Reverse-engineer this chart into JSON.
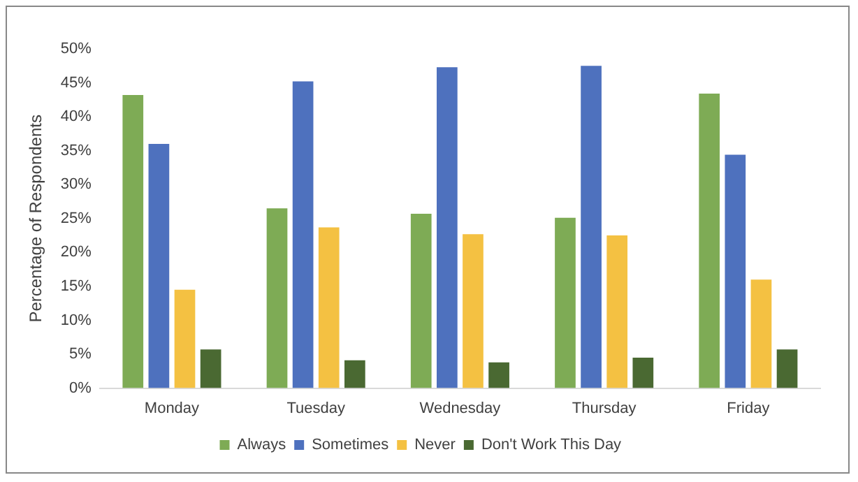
{
  "chart_data": {
    "type": "bar",
    "ylabel": "Percentage of Respondents",
    "categories": [
      "Monday",
      "Tuesday",
      "Wednesday",
      "Thursday",
      "Friday"
    ],
    "series": [
      {
        "name": "Always",
        "color": "#7eab55",
        "values": [
          43.2,
          26.5,
          25.7,
          25.1,
          43.4
        ]
      },
      {
        "name": "Sometimes",
        "color": "#4e71be",
        "values": [
          36.0,
          45.2,
          47.3,
          47.5,
          34.4
        ]
      },
      {
        "name": "Never",
        "color": "#f4c142",
        "values": [
          14.5,
          23.7,
          22.7,
          22.5,
          16.0
        ]
      },
      {
        "name": "Don't Work This Day",
        "color": "#4a6932",
        "values": [
          5.7,
          4.1,
          3.8,
          4.5,
          5.7
        ]
      }
    ],
    "ylim": [
      0,
      50
    ],
    "yticks": [
      {
        "value": 0,
        "label": "0%"
      },
      {
        "value": 5,
        "label": "5%"
      },
      {
        "value": 10,
        "label": "10%"
      },
      {
        "value": 15,
        "label": "15%"
      },
      {
        "value": 20,
        "label": "20%"
      },
      {
        "value": 25,
        "label": "25%"
      },
      {
        "value": 30,
        "label": "30%"
      },
      {
        "value": 35,
        "label": "35%"
      },
      {
        "value": 40,
        "label": "40%"
      },
      {
        "value": 45,
        "label": "45%"
      },
      {
        "value": 50,
        "label": "50%"
      }
    ],
    "grid": false,
    "legend": "bottom"
  }
}
